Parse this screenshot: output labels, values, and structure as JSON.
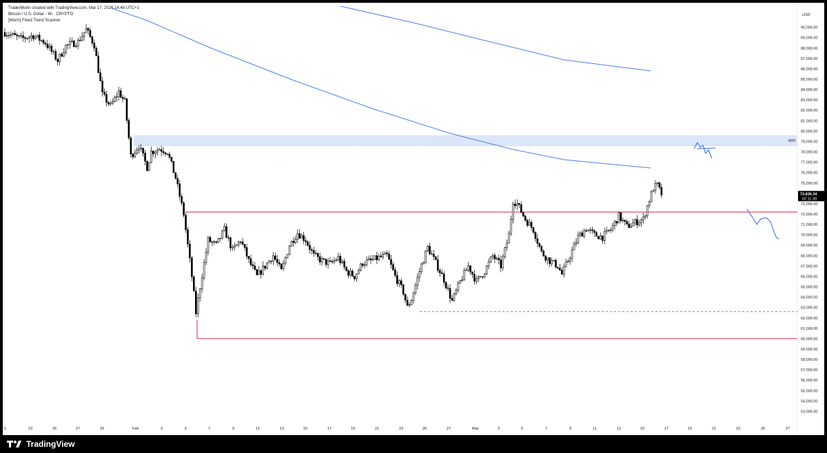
{
  "header": {
    "credit": "TraderMorin created with TradingView.com, Mar 17, 2026 14:48 UTC+1",
    "symbol": "Bitcoin / U.S. Dollar · 4h · CRYPTO",
    "indicator": "[Morin] Fixed Trend Scanner"
  },
  "footer": {
    "brand": "TradingView"
  },
  "chart_data": {
    "type": "candlestick",
    "currency": "USD",
    "timeframe": "4h",
    "x_labels": [
      "1",
      "23",
      "25",
      "27",
      "29",
      "Feb",
      "3",
      "5",
      "7",
      "9",
      "11",
      "13",
      "15",
      "17",
      "19",
      "21",
      "23",
      "25",
      "27",
      "Mar",
      "3",
      "5",
      "7",
      "9",
      "11",
      "13",
      "15",
      "17",
      "19",
      "21",
      "23",
      "25",
      "27"
    ],
    "y_labels": [
      "90,000.00",
      "89,000.00",
      "88,000.00",
      "87,000.00",
      "86,000.00",
      "85,000.00",
      "84,000.00",
      "83,000.00",
      "82,000.00",
      "81,000.00",
      "80,000.00",
      "79,000.00",
      "78,000.00",
      "77,000.00",
      "76,000.00",
      "75,000.00",
      "74,000.00",
      "73,000.00",
      "72,000.00",
      "71,000.00",
      "70,000.00",
      "69,000.00",
      "68,000.00",
      "67,000.00",
      "66,000.00",
      "65,000.00",
      "64,000.00",
      "63,000.00",
      "62,000.00",
      "61,000.00",
      "60,000.00",
      "59,000.00",
      "58,000.00",
      "57,000.00",
      "56,000.00",
      "55,000.00",
      "54,000.00",
      "53,000.00"
    ],
    "y_range": [
      52300,
      91700
    ],
    "last_price": "73,836.34",
    "countdown": "02:11:39",
    "zone_label": "M/O",
    "zone": [
      78600,
      79600
    ],
    "resistance_level": 72200,
    "low_level": 60000,
    "dashed_level": 62600,
    "anchors": [
      {
        "i": 0,
        "p": 89500
      },
      {
        "i": 8,
        "p": 88900
      },
      {
        "i": 14,
        "p": 89200
      },
      {
        "i": 20,
        "p": 88500
      },
      {
        "i": 26,
        "p": 86800
      },
      {
        "i": 30,
        "p": 88200
      },
      {
        "i": 36,
        "p": 88600
      },
      {
        "i": 40,
        "p": 89800
      },
      {
        "i": 44,
        "p": 88300
      },
      {
        "i": 48,
        "p": 83500
      },
      {
        "i": 52,
        "p": 82400
      },
      {
        "i": 56,
        "p": 83800
      },
      {
        "i": 59,
        "p": 82800
      },
      {
        "i": 62,
        "p": 77600
      },
      {
        "i": 66,
        "p": 78600
      },
      {
        "i": 70,
        "p": 76500
      },
      {
        "i": 72,
        "p": 78000
      },
      {
        "i": 76,
        "p": 78300
      },
      {
        "i": 80,
        "p": 78000
      },
      {
        "i": 84,
        "p": 75500
      },
      {
        "i": 88,
        "p": 72000
      },
      {
        "i": 92,
        "p": 66000
      },
      {
        "i": 94,
        "p": 62500
      },
      {
        "i": 96,
        "p": 65000
      },
      {
        "i": 100,
        "p": 69500
      },
      {
        "i": 104,
        "p": 69000
      },
      {
        "i": 108,
        "p": 70500
      },
      {
        "i": 112,
        "p": 68500
      },
      {
        "i": 116,
        "p": 69500
      },
      {
        "i": 120,
        "p": 67500
      },
      {
        "i": 124,
        "p": 66000
      },
      {
        "i": 128,
        "p": 67000
      },
      {
        "i": 132,
        "p": 68000
      },
      {
        "i": 136,
        "p": 66500
      },
      {
        "i": 140,
        "p": 69000
      },
      {
        "i": 144,
        "p": 70200
      },
      {
        "i": 148,
        "p": 69500
      },
      {
        "i": 152,
        "p": 68000
      },
      {
        "i": 156,
        "p": 67500
      },
      {
        "i": 160,
        "p": 67200
      },
      {
        "i": 164,
        "p": 67800
      },
      {
        "i": 168,
        "p": 66500
      },
      {
        "i": 172,
        "p": 66000
      },
      {
        "i": 176,
        "p": 67300
      },
      {
        "i": 180,
        "p": 67500
      },
      {
        "i": 184,
        "p": 67800
      },
      {
        "i": 188,
        "p": 68000
      },
      {
        "i": 192,
        "p": 66000
      },
      {
        "i": 196,
        "p": 64500
      },
      {
        "i": 198,
        "p": 63000
      },
      {
        "i": 200,
        "p": 63800
      },
      {
        "i": 204,
        "p": 66500
      },
      {
        "i": 208,
        "p": 68800
      },
      {
        "i": 212,
        "p": 67300
      },
      {
        "i": 216,
        "p": 65700
      },
      {
        "i": 220,
        "p": 63600
      },
      {
        "i": 224,
        "p": 65500
      },
      {
        "i": 228,
        "p": 67000
      },
      {
        "i": 232,
        "p": 65500
      },
      {
        "i": 236,
        "p": 66500
      },
      {
        "i": 240,
        "p": 68000
      },
      {
        "i": 244,
        "p": 67000
      },
      {
        "i": 248,
        "p": 70000
      },
      {
        "i": 250,
        "p": 73300
      },
      {
        "i": 252,
        "p": 73000
      },
      {
        "i": 256,
        "p": 71500
      },
      {
        "i": 260,
        "p": 70500
      },
      {
        "i": 264,
        "p": 68300
      },
      {
        "i": 268,
        "p": 67500
      },
      {
        "i": 272,
        "p": 67000
      },
      {
        "i": 274,
        "p": 66200
      },
      {
        "i": 278,
        "p": 68000
      },
      {
        "i": 282,
        "p": 69800
      },
      {
        "i": 286,
        "p": 70600
      },
      {
        "i": 290,
        "p": 70000
      },
      {
        "i": 294,
        "p": 69800
      },
      {
        "i": 298,
        "p": 70500
      },
      {
        "i": 302,
        "p": 71800
      },
      {
        "i": 306,
        "p": 70800
      },
      {
        "i": 310,
        "p": 71200
      },
      {
        "i": 314,
        "p": 71500
      },
      {
        "i": 316,
        "p": 72800
      },
      {
        "i": 319,
        "p": 74500
      },
      {
        "i": 321,
        "p": 74800
      },
      {
        "i": 323,
        "p": 73836
      }
    ],
    "colors": {
      "candle": "#000000",
      "ma": "#4a7fe8",
      "zone_fill": "#dbe6fb",
      "level": "#e0223f",
      "projection": "#2962ff",
      "axis_text": "#131722",
      "badge_bg": "#000000"
    }
  }
}
